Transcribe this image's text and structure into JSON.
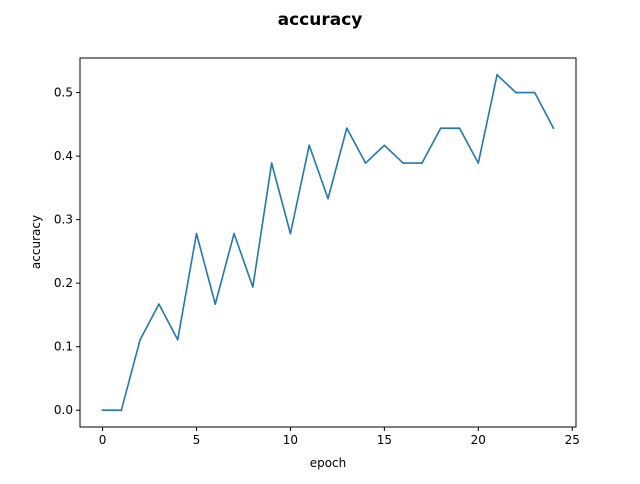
{
  "chart_data": {
    "type": "line",
    "title": "accuracy",
    "xlabel": "epoch",
    "ylabel": "accuracy",
    "xlim": [
      -1.2,
      25.2
    ],
    "ylim": [
      -0.0264,
      0.5544
    ],
    "xticks": [
      0,
      5,
      10,
      15,
      20,
      25
    ],
    "xtick_labels": [
      "0",
      "5",
      "10",
      "15",
      "20",
      "25"
    ],
    "yticks": [
      0.0,
      0.1,
      0.2,
      0.3,
      0.4,
      0.5
    ],
    "ytick_labels": [
      "0.0",
      "0.1",
      "0.2",
      "0.3",
      "0.4",
      "0.5"
    ],
    "grid": false,
    "legend": "none",
    "series": [
      {
        "color": "#1f77b4",
        "x": [
          0,
          1,
          2,
          3,
          4,
          5,
          6,
          7,
          8,
          9,
          10,
          11,
          12,
          13,
          14,
          15,
          16,
          17,
          18,
          19,
          20,
          21,
          22,
          23,
          24
        ],
        "y": [
          0.0,
          0.0,
          0.111,
          0.167,
          0.111,
          0.278,
          0.167,
          0.278,
          0.194,
          0.389,
          0.278,
          0.417,
          0.333,
          0.444,
          0.389,
          0.417,
          0.389,
          0.389,
          0.444,
          0.444,
          0.389,
          0.528,
          0.5,
          0.5,
          0.444
        ]
      }
    ]
  }
}
